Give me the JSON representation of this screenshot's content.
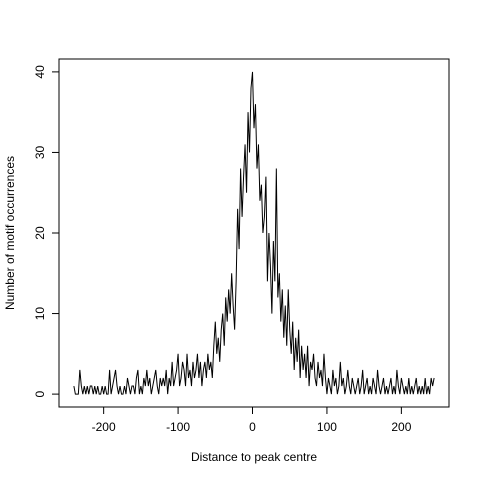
{
  "chart_data": {
    "type": "line",
    "xlabel": "Distance to peak centre",
    "ylabel": "Number of motif occurrences",
    "color": "#000000",
    "xlim": [
      -260,
      264
    ],
    "ylim": [
      -1.6,
      41.6
    ],
    "xticks": [
      -200,
      -100,
      0,
      100,
      200
    ],
    "yticks": [
      0,
      10,
      20,
      30,
      40
    ],
    "x": [
      -240,
      -238,
      -236,
      -234,
      -232,
      -230,
      -228,
      -226,
      -224,
      -222,
      -220,
      -218,
      -216,
      -214,
      -212,
      -210,
      -208,
      -206,
      -204,
      -202,
      -200,
      -198,
      -196,
      -194,
      -192,
      -190,
      -188,
      -186,
      -184,
      -182,
      -180,
      -178,
      -176,
      -174,
      -172,
      -170,
      -168,
      -166,
      -164,
      -162,
      -160,
      -158,
      -156,
      -154,
      -152,
      -150,
      -148,
      -146,
      -144,
      -142,
      -140,
      -138,
      -136,
      -134,
      -132,
      -130,
      -128,
      -126,
      -124,
      -122,
      -120,
      -118,
      -116,
      -114,
      -112,
      -110,
      -108,
      -106,
      -104,
      -102,
      -100,
      -98,
      -96,
      -94,
      -92,
      -90,
      -88,
      -86,
      -84,
      -82,
      -80,
      -78,
      -76,
      -74,
      -72,
      -70,
      -68,
      -66,
      -64,
      -62,
      -60,
      -58,
      -56,
      -54,
      -52,
      -50,
      -48,
      -46,
      -44,
      -42,
      -40,
      -38,
      -36,
      -34,
      -32,
      -30,
      -28,
      -26,
      -24,
      -22,
      -20,
      -18,
      -16,
      -14,
      -12,
      -10,
      -8,
      -6,
      -4,
      -2,
      0,
      2,
      4,
      6,
      8,
      10,
      12,
      14,
      16,
      18,
      20,
      22,
      24,
      26,
      28,
      30,
      32,
      34,
      36,
      38,
      40,
      42,
      44,
      46,
      48,
      50,
      52,
      54,
      56,
      58,
      60,
      62,
      64,
      66,
      68,
      70,
      72,
      74,
      76,
      78,
      80,
      82,
      84,
      86,
      88,
      90,
      92,
      94,
      96,
      98,
      100,
      102,
      104,
      106,
      108,
      110,
      112,
      114,
      116,
      118,
      120,
      122,
      124,
      126,
      128,
      130,
      132,
      134,
      136,
      138,
      140,
      142,
      144,
      146,
      148,
      150,
      152,
      154,
      156,
      158,
      160,
      162,
      164,
      166,
      168,
      170,
      172,
      174,
      176,
      178,
      180,
      182,
      184,
      186,
      188,
      190,
      192,
      194,
      196,
      198,
      200,
      202,
      204,
      206,
      208,
      210,
      212,
      214,
      216,
      218,
      220,
      222,
      224,
      226,
      228,
      230,
      232,
      234,
      236,
      238,
      240,
      242,
      244
    ],
    "values": [
      1,
      0,
      0,
      0,
      3,
      1,
      0,
      1,
      0,
      1,
      0,
      1,
      1,
      0,
      1,
      0,
      1,
      0,
      0,
      1,
      0,
      1,
      0,
      0,
      3,
      0,
      1,
      2,
      3,
      1,
      0,
      1,
      0,
      0,
      1,
      0,
      2,
      1,
      0,
      1,
      1,
      0,
      2,
      3,
      0,
      1,
      0,
      2,
      1,
      3,
      1,
      2,
      0,
      1,
      2,
      3,
      1,
      0,
      2,
      1,
      2,
      1,
      3,
      0,
      2,
      1,
      4,
      1,
      2,
      3,
      5,
      1,
      2,
      4,
      3,
      1,
      5,
      2,
      3,
      1,
      4,
      2,
      3,
      5,
      2,
      4,
      1,
      3,
      4,
      2,
      5,
      3,
      4,
      2,
      6,
      9,
      5,
      7,
      4,
      8,
      10,
      6,
      12,
      9,
      13,
      10,
      15,
      11,
      8,
      14,
      23,
      18,
      28,
      22,
      27,
      31,
      25,
      35,
      30,
      38,
      40,
      33,
      36,
      28,
      31,
      24,
      26,
      20,
      22,
      27,
      14,
      20,
      16,
      10,
      19,
      14,
      28,
      12,
      15,
      9,
      13,
      7,
      11,
      6,
      13,
      8,
      5,
      9,
      3,
      7,
      4,
      8,
      2,
      6,
      3,
      5,
      2,
      6,
      1,
      4,
      3,
      5,
      2,
      1,
      4,
      2,
      3,
      1,
      5,
      2,
      0,
      2,
      1,
      0,
      3,
      1,
      2,
      0,
      1,
      4,
      1,
      2,
      0,
      1,
      3,
      1,
      0,
      2,
      1,
      0,
      1,
      2,
      0,
      1,
      3,
      0,
      1,
      2,
      0,
      1,
      0,
      2,
      1,
      0,
      3,
      1,
      0,
      1,
      2,
      0,
      1,
      0,
      1,
      2,
      0,
      1,
      0,
      3,
      1,
      0,
      2,
      1,
      0,
      1,
      0,
      2,
      0,
      1,
      0,
      1,
      2,
      0,
      1,
      0,
      1,
      0,
      2,
      0,
      1,
      0,
      2,
      1,
      2
    ]
  }
}
